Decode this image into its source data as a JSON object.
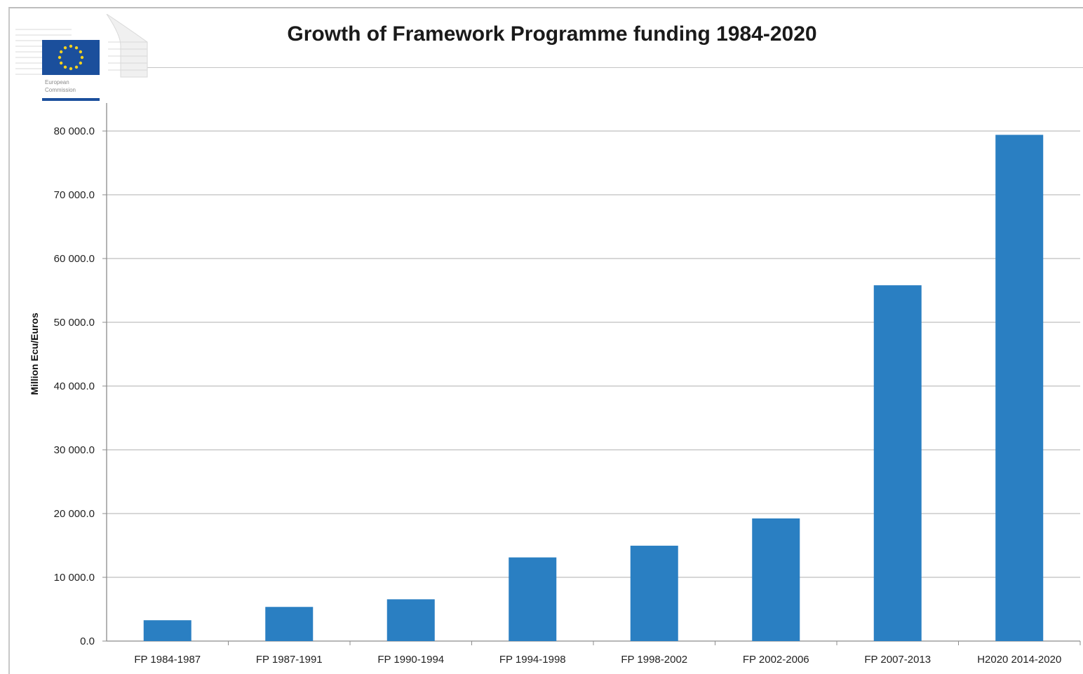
{
  "header": {
    "title": "Growth of Framework Programme funding  1984-2020",
    "logo_line1": "European",
    "logo_line2": "Commission"
  },
  "colors": {
    "bar": "#2a7fc2",
    "grid": "#bfbfbf",
    "flag_blue": "#1b4f9c",
    "flag_star": "#f5d21f"
  },
  "chart_data": {
    "type": "bar",
    "title": "Growth of Framework Programme funding  1984-2020",
    "xlabel": "",
    "ylabel": "Million Ecu/Euros",
    "categories": [
      "FP 1984-1987",
      "FP 1987-1991",
      "FP 1990-1994",
      "FP 1994-1998",
      "FP 1998-2002",
      "FP 2002-2006",
      "FP 2007-2013",
      "H2020 2014-2020"
    ],
    "values": [
      3270,
      5357,
      6552,
      13121,
      14960,
      19235,
      55806,
      79401
    ],
    "ylim": [
      0,
      80000
    ],
    "yticks": [
      0,
      10000,
      20000,
      30000,
      40000,
      50000,
      60000,
      70000,
      80000
    ],
    "ytick_labels": [
      "0.0",
      "10 000.0",
      "20 000.0",
      "30 000.0",
      "40 000.0",
      "50 000.0",
      "60 000.0",
      "70 000.0",
      "80 000.0"
    ],
    "grid": true,
    "legend": "none"
  }
}
